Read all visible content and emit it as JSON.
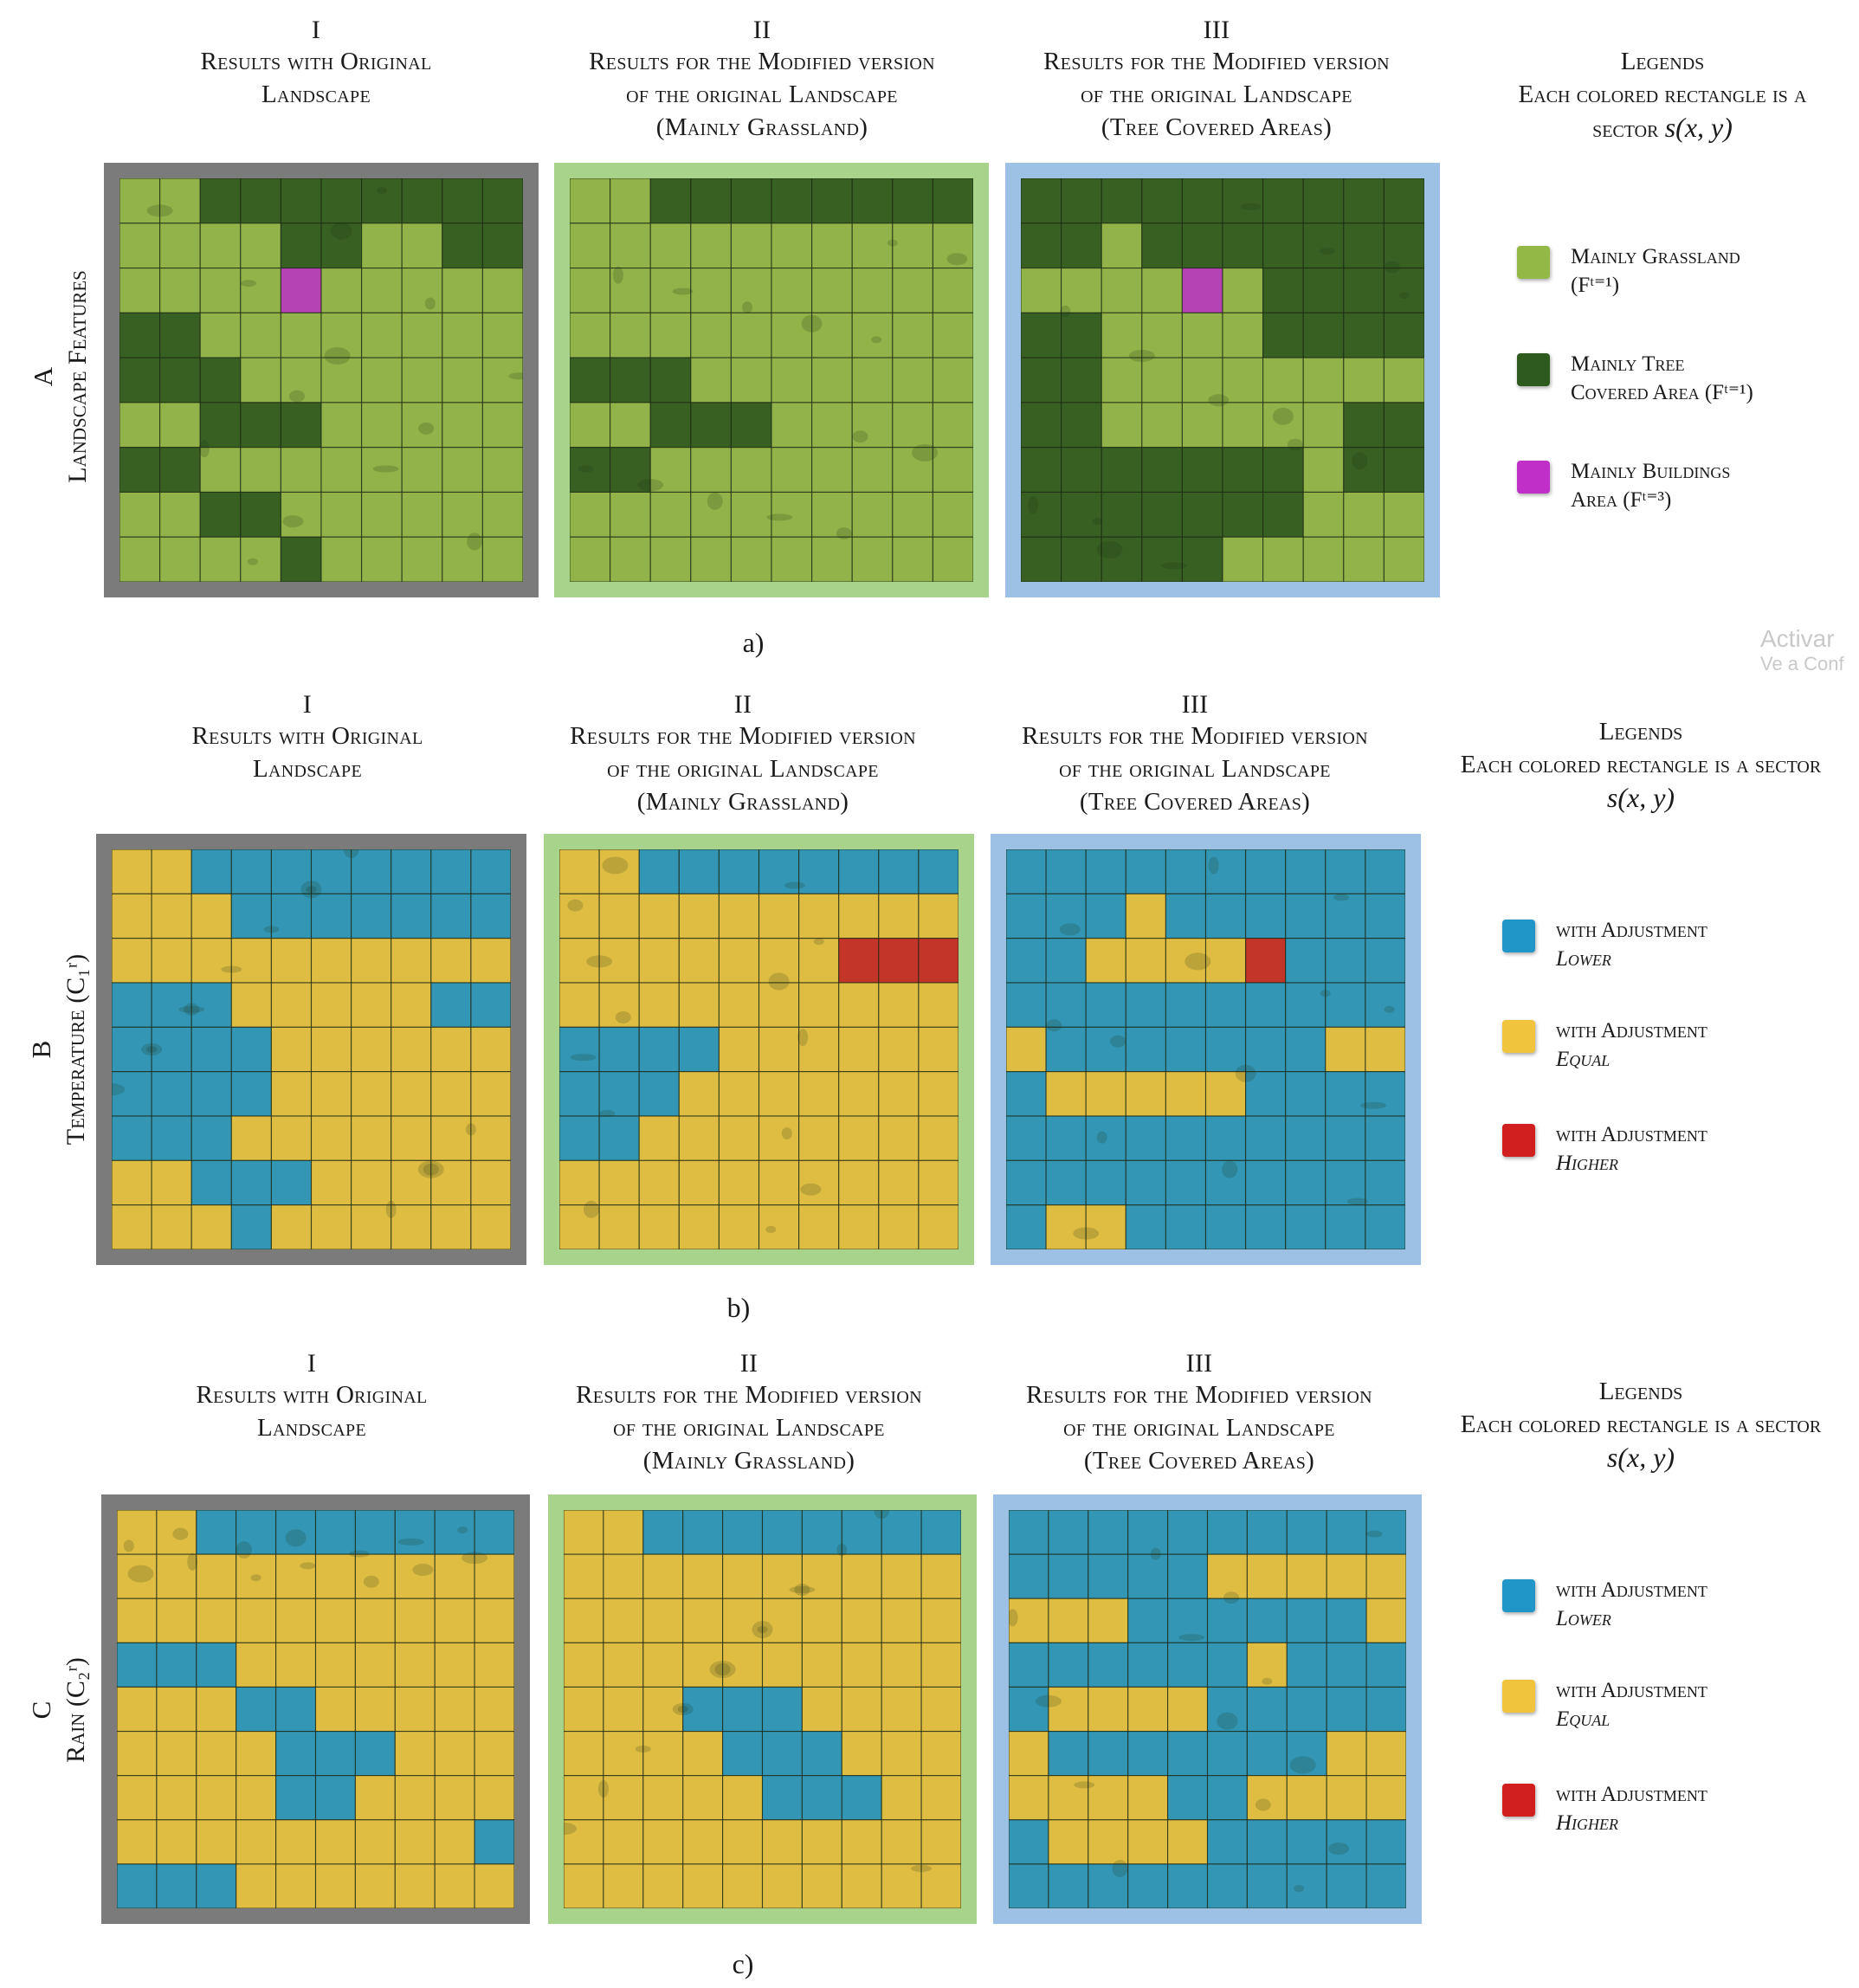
{
  "colors": {
    "grass": "#93b845",
    "tree": "#2f5a1e",
    "building": "#c030c8",
    "lower": "#1f95c8",
    "equal": "#f1c43e",
    "higher": "#d11f1f",
    "frame_original": "#7b7b7b",
    "frame_grassland": "#a8d38a",
    "frame_tree": "#9cc1e4"
  },
  "column_headers": [
    {
      "numeral": "I",
      "lines": [
        "Results with Original",
        "Landscape"
      ]
    },
    {
      "numeral": "II",
      "lines": [
        "Results for the Modified version",
        "of the original Landscape",
        "(Mainly Grassland)"
      ]
    },
    {
      "numeral": "III",
      "lines": [
        "Results for the Modified version",
        "of the original Landscape",
        "(Tree Covered Areas)"
      ]
    }
  ],
  "rows": [
    {
      "letter": "A",
      "label": "Landscape Features",
      "caption": "a)",
      "legend": {
        "title_line1": "Legends",
        "title_line2": "Each colored rectangle is a",
        "title_line3": "sector",
        "title_math": "s(x, y)",
        "items": [
          {
            "color": "grass",
            "line1": "Mainly Grassland",
            "line2": "(Fᵗ⁼¹)",
            "italic2": false
          },
          {
            "color": "tree",
            "line1": "Mainly Tree",
            "line2": "Covered Area (Fᵗ⁼¹)",
            "italic2": false
          },
          {
            "color": "building",
            "line1": "Mainly Buildings",
            "line2": "Area (Fᵗ⁼³)",
            "italic2": false
          }
        ]
      },
      "grids": [
        [
          "GGTTTTTTTT",
          "GGGGTTGGTT",
          "GGGGBGGGGG",
          "TTGGGGGGGG",
          "TTTGGGGGGG",
          "GGTTTGGGGG",
          "TTGGGGGGGG",
          "GGTTGGGGGG",
          "GGGGTGGGGG"
        ],
        [
          "GGTTTTTTTT",
          "GGGGGGGGGG",
          "GGGGGGGGGG",
          "GGGGGGGGGG",
          "TTTGGGGGGG",
          "GGTTTGGGGG",
          "TTGGGGGGGG",
          "GGGGGGGGGG",
          "GGGGGGGGGG"
        ],
        [
          "TTTTTTTTTT",
          "TTGTTTTTTT",
          "GGGGBGTTTT",
          "TTGGGGTTTT",
          "TTGGGGGGGG",
          "TTGGGGGGTT",
          "TTTTTTTGTT",
          "TTTTTTTGGG",
          "TTTTTGGGGG"
        ]
      ]
    },
    {
      "letter": "B",
      "label": "Temperature (C₁ʳ)",
      "caption": "b)",
      "legend": {
        "title_line1": "Legends",
        "title_line2": "Each colored rectangle is a sector",
        "title_line3": "",
        "title_math": "s(x, y)",
        "items": [
          {
            "color": "lower",
            "line1": "with Adjustment",
            "line2": "Lower",
            "italic2": true
          },
          {
            "color": "equal",
            "line1": "with Adjustment",
            "line2": "Equal",
            "italic2": true
          },
          {
            "color": "higher",
            "line1": "with Adjustment",
            "line2": "Higher",
            "italic2": true
          }
        ]
      },
      "grids": [
        [
          "YYLLLLLLLL",
          "YYYLLLLLLL",
          "YYYYYYYYYY",
          "LLLYYYYYLL",
          "LLLLYYYYYY",
          "LLLLYYYYYY",
          "LLLYYYYYYY",
          "YYLLLYYYYY",
          "YYYLYYYYYY"
        ],
        [
          "YYLLLLLLLL",
          "YYYYYYYYYY",
          "YYYYYYYRRR",
          "YYYYYYYYYY",
          "LLLLYYYYYY",
          "LLLYYYYYYY",
          "LLYYYYYYYY",
          "YYYYYYYYYY",
          "YYYYYYYYYY"
        ],
        [
          "LLLLLLLLLL",
          "LLLYLLLLLL",
          "LLYYYYRLLL",
          "LLLLLLLLLL",
          "YLLLLLLLYY",
          "LYYYYYLLLL",
          "LLLLLLLLLL",
          "LLLLLLLLLL",
          "LYYLLLLLLL"
        ]
      ]
    },
    {
      "letter": "C",
      "label": "Rain (C₂ʳ)",
      "caption": "c)",
      "legend": {
        "title_line1": "Legends",
        "title_line2": "Each colored rectangle is a sector",
        "title_line3": "",
        "title_math": "s(x, y)",
        "items": [
          {
            "color": "lower",
            "line1": "with Adjustment",
            "line2": "Lower",
            "italic2": true
          },
          {
            "color": "equal",
            "line1": "with Adjustment",
            "line2": "Equal",
            "italic2": true
          },
          {
            "color": "higher",
            "line1": "with Adjustment",
            "line2": "Higher",
            "italic2": true
          }
        ]
      },
      "grids": [
        [
          "YYLLLLLLLL",
          "YYYYYYYYYY",
          "YYYYYYYYYY",
          "LLLYYYYYYY",
          "YYYLLYYYYY",
          "YYYYLLLYYY",
          "YYYYLLYYYY",
          "YYYYYYYYYL",
          "LLLYYYYYYY"
        ],
        [
          "YYLLLLLLLL",
          "YYYYYYYYYY",
          "YYYYYYYYYY",
          "YYYYYYYYYY",
          "YYYLLLYYYY",
          "YYYYLLLYYY",
          "YYYYYLLLYY",
          "YYYYYYYYYY",
          "YYYYYYYYYY"
        ],
        [
          "LLLLLLLLLL",
          "LLLLLYYYYY",
          "YYYLLLLLLY",
          "LLLLLLYLLL",
          "LYYYYLLLLL",
          "YLLLLLLLYY",
          "YYYYLLYYYY",
          "LYYYYLLLLL",
          "LLLLLLLLLL"
        ]
      ]
    }
  ],
  "watermark": {
    "line1": "Activar",
    "line2": "Ve a Conf"
  }
}
